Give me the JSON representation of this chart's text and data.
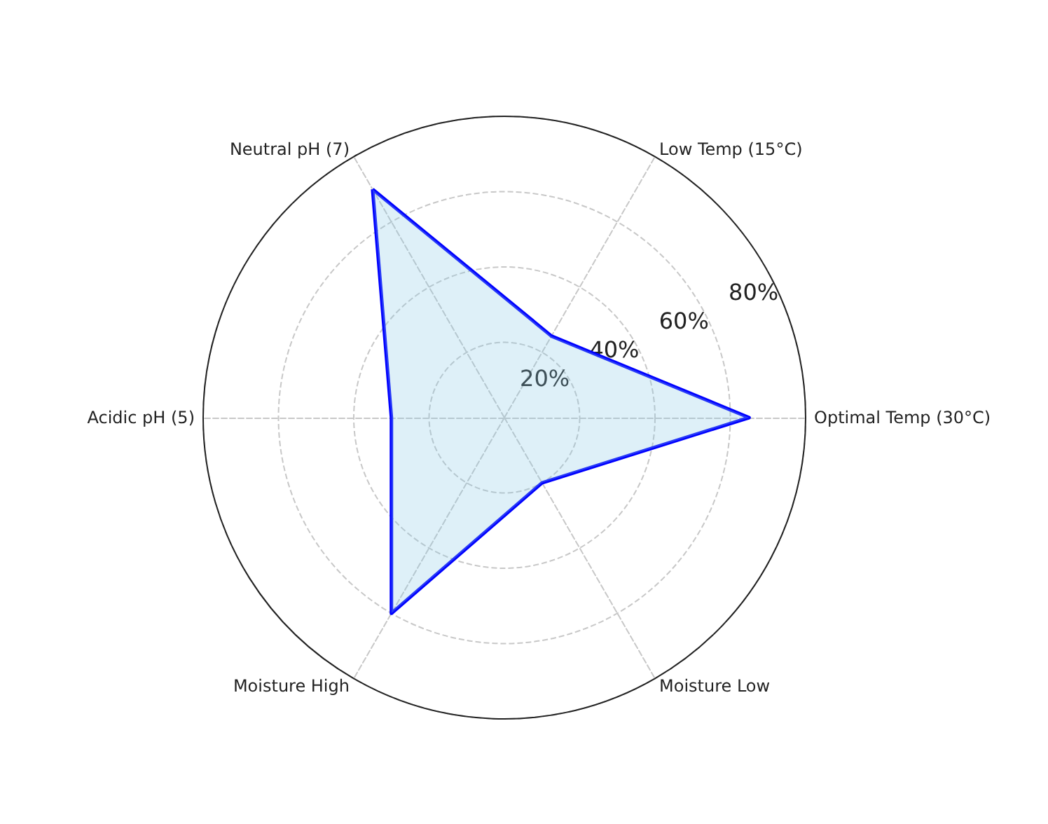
{
  "chart_data": {
    "type": "radar",
    "categories": [
      "Low Temp (15°C)",
      "Optimal Temp (30°C)",
      "Moisture Low",
      "Moisture High",
      "Acidic pH (5)",
      "Neutral pH (7)"
    ],
    "series": [
      {
        "color": "#0000ff",
        "values": [
          25,
          65,
          20,
          60,
          30,
          70
        ]
      }
    ],
    "ylim": [
      0,
      80
    ],
    "yticks": [
      {
        "value": 20,
        "label": "20%"
      },
      {
        "value": 40,
        "label": "40%"
      },
      {
        "value": 60,
        "label": "60%"
      },
      {
        "value": 80,
        "label": "80%"
      }
    ],
    "grid": true,
    "marker": "none",
    "line_style": "solid"
  }
}
